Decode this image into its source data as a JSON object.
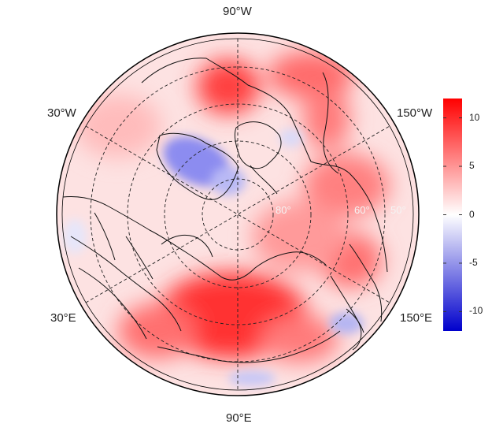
{
  "map": {
    "projection": "north-polar-stereographic",
    "meridian_labels": {
      "top": "90°W",
      "bottom": "90°E",
      "left_upper": "30°W",
      "left_lower": "30°E",
      "right_upper": "150°W",
      "right_lower": "150°E"
    },
    "latitude_labels": [
      "80°",
      "60°",
      "50°"
    ],
    "colormap": {
      "low": "#0000cc",
      "mid": "#ffffff",
      "high": "#ff0000"
    }
  },
  "colorbar": {
    "min": -12,
    "max": 12,
    "ticks": [
      {
        "value": 10,
        "label": "10"
      },
      {
        "value": 5,
        "label": "5"
      },
      {
        "value": 0,
        "label": "0"
      },
      {
        "value": -5,
        "label": "-5"
      },
      {
        "value": -10,
        "label": "-10"
      }
    ]
  }
}
